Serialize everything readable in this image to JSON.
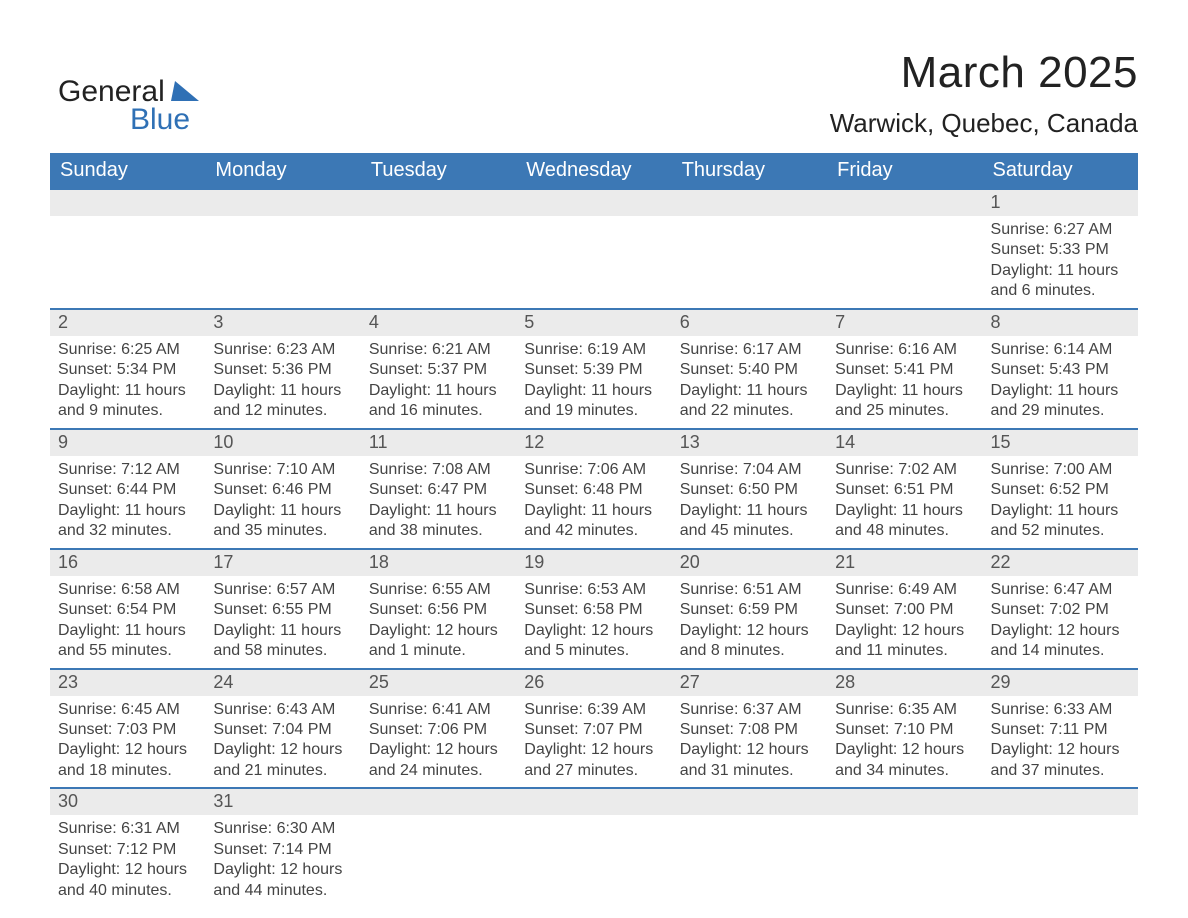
{
  "logo": {
    "text1": "General",
    "text2": "Blue",
    "color_text": "#222222",
    "color_blue": "#2f70b5"
  },
  "title": "March 2025",
  "subtitle": "Warwick, Quebec, Canada",
  "colors": {
    "header_bg": "#3c78b5",
    "header_text": "#ffffff",
    "daynum_bg": "#ebebeb",
    "daynum_text": "#555555",
    "body_text": "#444444",
    "row_divider": "#3c78b5",
    "background": "#ffffff"
  },
  "fonts": {
    "title_size": 44,
    "subtitle_size": 26,
    "header_size": 20,
    "daynum_size": 18,
    "body_size": 16,
    "logo_size": 30
  },
  "headers": [
    "Sunday",
    "Monday",
    "Tuesday",
    "Wednesday",
    "Thursday",
    "Friday",
    "Saturday"
  ],
  "weeks": [
    [
      {
        "day": "",
        "sunrise": "",
        "sunset": "",
        "daylight1": "",
        "daylight2": ""
      },
      {
        "day": "",
        "sunrise": "",
        "sunset": "",
        "daylight1": "",
        "daylight2": ""
      },
      {
        "day": "",
        "sunrise": "",
        "sunset": "",
        "daylight1": "",
        "daylight2": ""
      },
      {
        "day": "",
        "sunrise": "",
        "sunset": "",
        "daylight1": "",
        "daylight2": ""
      },
      {
        "day": "",
        "sunrise": "",
        "sunset": "",
        "daylight1": "",
        "daylight2": ""
      },
      {
        "day": "",
        "sunrise": "",
        "sunset": "",
        "daylight1": "",
        "daylight2": ""
      },
      {
        "day": "1",
        "sunrise": "Sunrise: 6:27 AM",
        "sunset": "Sunset: 5:33 PM",
        "daylight1": "Daylight: 11 hours",
        "daylight2": "and 6 minutes."
      }
    ],
    [
      {
        "day": "2",
        "sunrise": "Sunrise: 6:25 AM",
        "sunset": "Sunset: 5:34 PM",
        "daylight1": "Daylight: 11 hours",
        "daylight2": "and 9 minutes."
      },
      {
        "day": "3",
        "sunrise": "Sunrise: 6:23 AM",
        "sunset": "Sunset: 5:36 PM",
        "daylight1": "Daylight: 11 hours",
        "daylight2": "and 12 minutes."
      },
      {
        "day": "4",
        "sunrise": "Sunrise: 6:21 AM",
        "sunset": "Sunset: 5:37 PM",
        "daylight1": "Daylight: 11 hours",
        "daylight2": "and 16 minutes."
      },
      {
        "day": "5",
        "sunrise": "Sunrise: 6:19 AM",
        "sunset": "Sunset: 5:39 PM",
        "daylight1": "Daylight: 11 hours",
        "daylight2": "and 19 minutes."
      },
      {
        "day": "6",
        "sunrise": "Sunrise: 6:17 AM",
        "sunset": "Sunset: 5:40 PM",
        "daylight1": "Daylight: 11 hours",
        "daylight2": "and 22 minutes."
      },
      {
        "day": "7",
        "sunrise": "Sunrise: 6:16 AM",
        "sunset": "Sunset: 5:41 PM",
        "daylight1": "Daylight: 11 hours",
        "daylight2": "and 25 minutes."
      },
      {
        "day": "8",
        "sunrise": "Sunrise: 6:14 AM",
        "sunset": "Sunset: 5:43 PM",
        "daylight1": "Daylight: 11 hours",
        "daylight2": "and 29 minutes."
      }
    ],
    [
      {
        "day": "9",
        "sunrise": "Sunrise: 7:12 AM",
        "sunset": "Sunset: 6:44 PM",
        "daylight1": "Daylight: 11 hours",
        "daylight2": "and 32 minutes."
      },
      {
        "day": "10",
        "sunrise": "Sunrise: 7:10 AM",
        "sunset": "Sunset: 6:46 PM",
        "daylight1": "Daylight: 11 hours",
        "daylight2": "and 35 minutes."
      },
      {
        "day": "11",
        "sunrise": "Sunrise: 7:08 AM",
        "sunset": "Sunset: 6:47 PM",
        "daylight1": "Daylight: 11 hours",
        "daylight2": "and 38 minutes."
      },
      {
        "day": "12",
        "sunrise": "Sunrise: 7:06 AM",
        "sunset": "Sunset: 6:48 PM",
        "daylight1": "Daylight: 11 hours",
        "daylight2": "and 42 minutes."
      },
      {
        "day": "13",
        "sunrise": "Sunrise: 7:04 AM",
        "sunset": "Sunset: 6:50 PM",
        "daylight1": "Daylight: 11 hours",
        "daylight2": "and 45 minutes."
      },
      {
        "day": "14",
        "sunrise": "Sunrise: 7:02 AM",
        "sunset": "Sunset: 6:51 PM",
        "daylight1": "Daylight: 11 hours",
        "daylight2": "and 48 minutes."
      },
      {
        "day": "15",
        "sunrise": "Sunrise: 7:00 AM",
        "sunset": "Sunset: 6:52 PM",
        "daylight1": "Daylight: 11 hours",
        "daylight2": "and 52 minutes."
      }
    ],
    [
      {
        "day": "16",
        "sunrise": "Sunrise: 6:58 AM",
        "sunset": "Sunset: 6:54 PM",
        "daylight1": "Daylight: 11 hours",
        "daylight2": "and 55 minutes."
      },
      {
        "day": "17",
        "sunrise": "Sunrise: 6:57 AM",
        "sunset": "Sunset: 6:55 PM",
        "daylight1": "Daylight: 11 hours",
        "daylight2": "and 58 minutes."
      },
      {
        "day": "18",
        "sunrise": "Sunrise: 6:55 AM",
        "sunset": "Sunset: 6:56 PM",
        "daylight1": "Daylight: 12 hours",
        "daylight2": "and 1 minute."
      },
      {
        "day": "19",
        "sunrise": "Sunrise: 6:53 AM",
        "sunset": "Sunset: 6:58 PM",
        "daylight1": "Daylight: 12 hours",
        "daylight2": "and 5 minutes."
      },
      {
        "day": "20",
        "sunrise": "Sunrise: 6:51 AM",
        "sunset": "Sunset: 6:59 PM",
        "daylight1": "Daylight: 12 hours",
        "daylight2": "and 8 minutes."
      },
      {
        "day": "21",
        "sunrise": "Sunrise: 6:49 AM",
        "sunset": "Sunset: 7:00 PM",
        "daylight1": "Daylight: 12 hours",
        "daylight2": "and 11 minutes."
      },
      {
        "day": "22",
        "sunrise": "Sunrise: 6:47 AM",
        "sunset": "Sunset: 7:02 PM",
        "daylight1": "Daylight: 12 hours",
        "daylight2": "and 14 minutes."
      }
    ],
    [
      {
        "day": "23",
        "sunrise": "Sunrise: 6:45 AM",
        "sunset": "Sunset: 7:03 PM",
        "daylight1": "Daylight: 12 hours",
        "daylight2": "and 18 minutes."
      },
      {
        "day": "24",
        "sunrise": "Sunrise: 6:43 AM",
        "sunset": "Sunset: 7:04 PM",
        "daylight1": "Daylight: 12 hours",
        "daylight2": "and 21 minutes."
      },
      {
        "day": "25",
        "sunrise": "Sunrise: 6:41 AM",
        "sunset": "Sunset: 7:06 PM",
        "daylight1": "Daylight: 12 hours",
        "daylight2": "and 24 minutes."
      },
      {
        "day": "26",
        "sunrise": "Sunrise: 6:39 AM",
        "sunset": "Sunset: 7:07 PM",
        "daylight1": "Daylight: 12 hours",
        "daylight2": "and 27 minutes."
      },
      {
        "day": "27",
        "sunrise": "Sunrise: 6:37 AM",
        "sunset": "Sunset: 7:08 PM",
        "daylight1": "Daylight: 12 hours",
        "daylight2": "and 31 minutes."
      },
      {
        "day": "28",
        "sunrise": "Sunrise: 6:35 AM",
        "sunset": "Sunset: 7:10 PM",
        "daylight1": "Daylight: 12 hours",
        "daylight2": "and 34 minutes."
      },
      {
        "day": "29",
        "sunrise": "Sunrise: 6:33 AM",
        "sunset": "Sunset: 7:11 PM",
        "daylight1": "Daylight: 12 hours",
        "daylight2": "and 37 minutes."
      }
    ],
    [
      {
        "day": "30",
        "sunrise": "Sunrise: 6:31 AM",
        "sunset": "Sunset: 7:12 PM",
        "daylight1": "Daylight: 12 hours",
        "daylight2": "and 40 minutes."
      },
      {
        "day": "31",
        "sunrise": "Sunrise: 6:30 AM",
        "sunset": "Sunset: 7:14 PM",
        "daylight1": "Daylight: 12 hours",
        "daylight2": "and 44 minutes."
      },
      {
        "day": "",
        "sunrise": "",
        "sunset": "",
        "daylight1": "",
        "daylight2": ""
      },
      {
        "day": "",
        "sunrise": "",
        "sunset": "",
        "daylight1": "",
        "daylight2": ""
      },
      {
        "day": "",
        "sunrise": "",
        "sunset": "",
        "daylight1": "",
        "daylight2": ""
      },
      {
        "day": "",
        "sunrise": "",
        "sunset": "",
        "daylight1": "",
        "daylight2": ""
      },
      {
        "day": "",
        "sunrise": "",
        "sunset": "",
        "daylight1": "",
        "daylight2": ""
      }
    ]
  ]
}
